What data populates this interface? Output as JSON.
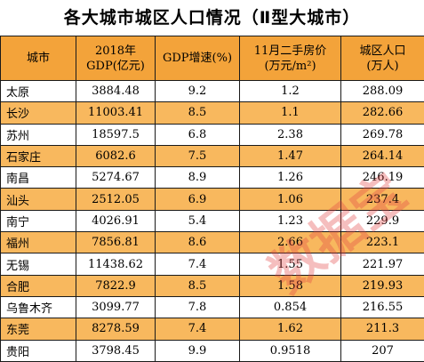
{
  "title": "各大城市城区人口情况（Ⅱ型大城市）",
  "headers": [
    "城市",
    "2018年\nGDP(亿元)",
    "GDP增速(%)",
    "11月二手房价\n(万元/m²)",
    "城区人口\n(万人)"
  ],
  "rows": [
    [
      "太原",
      "3884.48",
      "9.2",
      "1.2",
      "288.09"
    ],
    [
      "长沙",
      "11003.41",
      "8.5",
      "1.1",
      "282.66"
    ],
    [
      "苏州",
      "18597.5",
      "6.8",
      "2.38",
      "269.78"
    ],
    [
      "石家庄",
      "6082.6",
      "7.5",
      "1.47",
      "264.14"
    ],
    [
      "南昌",
      "5274.67",
      "8.9",
      "1.26",
      "246.19"
    ],
    [
      "汕头",
      "2512.05",
      "6.9",
      "1.06",
      "237.4"
    ],
    [
      "南宁",
      "4026.91",
      "5.4",
      "1.23",
      "229.9"
    ],
    [
      "福州",
      "7856.81",
      "8.6",
      "2.66",
      "223.1"
    ],
    [
      "无锡",
      "11438.62",
      "7.4",
      "1.55",
      "221.97"
    ],
    [
      "合肥",
      "7822.9",
      "8.5",
      "1.58",
      "219.93"
    ],
    [
      "乌鲁木齐",
      "3099.77",
      "7.8",
      "0.854",
      "216.55"
    ],
    [
      "东莞",
      "8278.59",
      "7.4",
      "1.62",
      "211.3"
    ],
    [
      "贵阳",
      "3798.45",
      "9.9",
      "0.9518",
      "207"
    ]
  ],
  "watermark": "数据宝",
  "colors": {
    "header_bg": "#f3a33a",
    "alt_row_bg": "#f8b85e",
    "watermark": "#e14646"
  }
}
